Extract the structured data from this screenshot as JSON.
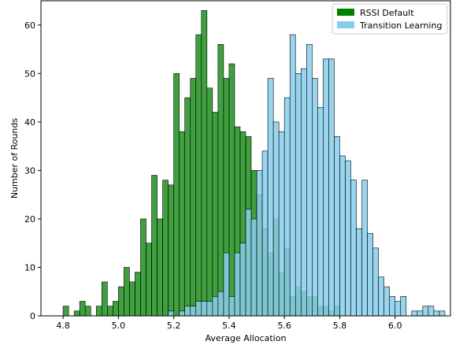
{
  "chart_data": {
    "type": "bar",
    "title": "",
    "xlabel": "Average Allocation",
    "ylabel": "Number of Rounds",
    "xlim": [
      4.72,
      6.2
    ],
    "ylim": [
      0,
      65
    ],
    "xticks": [
      4.8,
      5.0,
      5.2,
      5.4,
      5.6,
      5.8,
      6.0
    ],
    "yticks": [
      0,
      10,
      20,
      30,
      40,
      50,
      60
    ],
    "legend_position": "top-right",
    "bin_width": 0.02,
    "series": [
      {
        "name": "RSSI Default",
        "color": "#008000",
        "opacity": 0.75,
        "bins": [
          [
            4.8,
            2
          ],
          [
            4.84,
            1
          ],
          [
            4.86,
            3
          ],
          [
            4.88,
            2
          ],
          [
            4.92,
            2
          ],
          [
            4.94,
            7
          ],
          [
            4.96,
            2
          ],
          [
            4.98,
            3
          ],
          [
            5.0,
            6
          ],
          [
            5.02,
            10
          ],
          [
            5.04,
            7
          ],
          [
            5.06,
            9
          ],
          [
            5.08,
            20
          ],
          [
            5.1,
            15
          ],
          [
            5.12,
            29
          ],
          [
            5.14,
            20
          ],
          [
            5.16,
            28
          ],
          [
            5.18,
            27
          ],
          [
            5.2,
            50
          ],
          [
            5.22,
            38
          ],
          [
            5.24,
            45
          ],
          [
            5.26,
            49
          ],
          [
            5.28,
            58
          ],
          [
            5.3,
            63
          ],
          [
            5.32,
            47
          ],
          [
            5.34,
            42
          ],
          [
            5.36,
            56
          ],
          [
            5.38,
            49
          ],
          [
            5.4,
            52
          ],
          [
            5.42,
            39
          ],
          [
            5.44,
            38
          ],
          [
            5.46,
            37
          ],
          [
            5.48,
            30
          ],
          [
            5.5,
            25
          ],
          [
            5.52,
            18
          ],
          [
            5.54,
            13
          ],
          [
            5.56,
            20
          ],
          [
            5.58,
            9
          ],
          [
            5.6,
            14
          ],
          [
            5.62,
            4
          ],
          [
            5.64,
            6
          ],
          [
            5.66,
            5
          ],
          [
            5.68,
            4
          ],
          [
            5.7,
            4
          ],
          [
            5.72,
            2
          ],
          [
            5.74,
            2
          ],
          [
            5.76,
            1
          ],
          [
            5.78,
            2
          ]
        ]
      },
      {
        "name": "Transition Learning",
        "color": "#87ceeb",
        "opacity": 0.85,
        "bins": [
          [
            5.18,
            1
          ],
          [
            5.22,
            1
          ],
          [
            5.24,
            2
          ],
          [
            5.26,
            2
          ],
          [
            5.28,
            3
          ],
          [
            5.3,
            3
          ],
          [
            5.32,
            3
          ],
          [
            5.34,
            4
          ],
          [
            5.36,
            5
          ],
          [
            5.38,
            13
          ],
          [
            5.4,
            4
          ],
          [
            5.42,
            13
          ],
          [
            5.44,
            15
          ],
          [
            5.46,
            22
          ],
          [
            5.48,
            20
          ],
          [
            5.5,
            30
          ],
          [
            5.52,
            34
          ],
          [
            5.54,
            49
          ],
          [
            5.56,
            40
          ],
          [
            5.58,
            38
          ],
          [
            5.6,
            45
          ],
          [
            5.62,
            58
          ],
          [
            5.64,
            50
          ],
          [
            5.66,
            51
          ],
          [
            5.68,
            56
          ],
          [
            5.7,
            49
          ],
          [
            5.72,
            43
          ],
          [
            5.74,
            53
          ],
          [
            5.76,
            53
          ],
          [
            5.78,
            37
          ],
          [
            5.8,
            33
          ],
          [
            5.82,
            32
          ],
          [
            5.84,
            28
          ],
          [
            5.86,
            18
          ],
          [
            5.88,
            28
          ],
          [
            5.9,
            17
          ],
          [
            5.92,
            14
          ],
          [
            5.94,
            8
          ],
          [
            5.96,
            6
          ],
          [
            5.98,
            4
          ],
          [
            6.0,
            3
          ],
          [
            6.02,
            4
          ],
          [
            6.06,
            1
          ],
          [
            6.08,
            1
          ],
          [
            6.1,
            2
          ],
          [
            6.12,
            2
          ],
          [
            6.14,
            1
          ],
          [
            6.16,
            1
          ]
        ]
      }
    ]
  }
}
